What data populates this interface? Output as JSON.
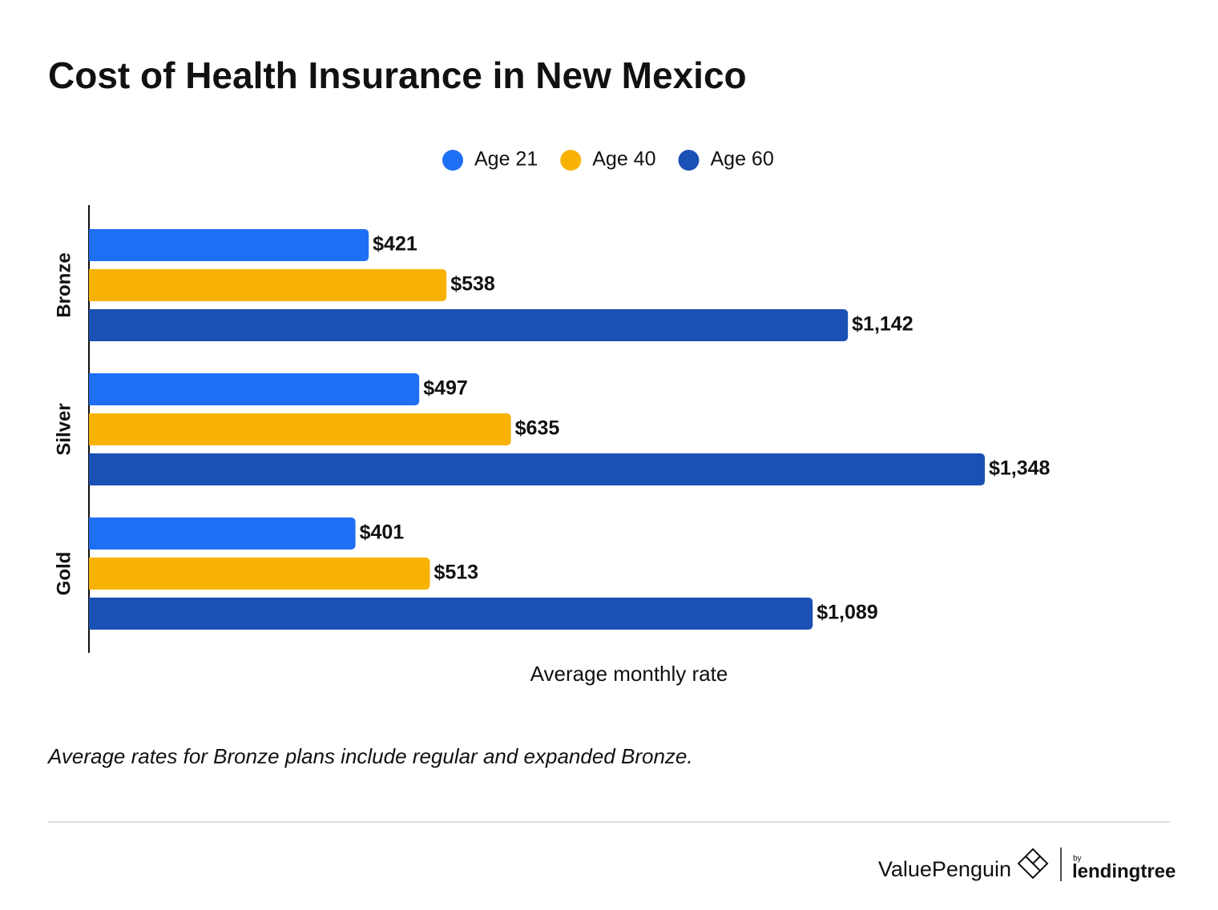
{
  "chart_data": {
    "type": "hbar",
    "title": "Cost of Health Insurance in New Mexico",
    "categories": [
      "Bronze",
      "Silver",
      "Gold"
    ],
    "series": [
      {
        "name": "Age 21",
        "color": "#1f6ff5",
        "values": [
          421,
          497,
          401
        ],
        "value_labels": [
          "$421",
          "$497",
          "$401"
        ]
      },
      {
        "name": "Age 40",
        "color": "#f8b203",
        "values": [
          538,
          635,
          513
        ],
        "value_labels": [
          "$538",
          "$635",
          "$513"
        ]
      },
      {
        "name": "Age 60",
        "color": "#1b50b5",
        "values": [
          1142,
          1348,
          1089
        ],
        "value_labels": [
          "$1,142",
          "$1,348",
          "$1,089"
        ]
      }
    ],
    "xlabel": "Average monthly rate",
    "note": "Average rates for Bronze plans include regular and expanded Bronze."
  },
  "footer": {
    "brand": "ValuePenguin",
    "by": "by",
    "partner": "lendingtree"
  }
}
